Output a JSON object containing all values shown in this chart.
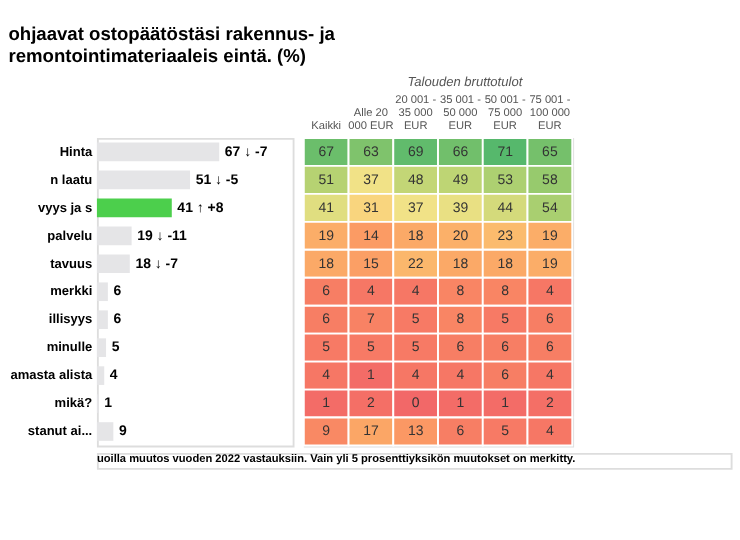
{
  "chart_data": [
    {
      "type": "bar",
      "orientation": "horizontal",
      "title": "ohjaavat ostopäätöstäsi rakennus- ja remontointimateriaaleis eintä. (%)",
      "categories": [
        "Hinta",
        "n laatu",
        "vyys ja s",
        "palvelu",
        "tavuus",
        "merkki",
        "illisyys",
        "minulle",
        "amasta alista",
        "mikä?",
        "stanut ai..."
      ],
      "values": [
        67,
        51,
        41,
        19,
        18,
        6,
        6,
        5,
        4,
        1,
        9
      ],
      "colors": [
        "#e5e5e7",
        "#e5e5e7",
        "#4ccf4c",
        "#e5e5e7",
        "#e5e5e7",
        "#e5e5e7",
        "#e5e5e7",
        "#e5e5e7",
        "#e5e5e7",
        "#e5e5e7",
        "#e5e5e7"
      ],
      "value_labels": [
        "67 ↓ -7",
        "51 ↓ -5",
        "41 ↑ +8",
        "19 ↓ -11",
        "18 ↓ -7",
        "6",
        "6",
        "5",
        "4",
        "1",
        "9"
      ],
      "annotations": [
        "uoilla muutos vuoden 2022 vastauksiin. Vain yli 5 prosenttiyksikön muutokset on merkitty."
      ]
    },
    {
      "type": "heatmap",
      "xlabel": "Talouden bruttotulot",
      "categories": [
        "Kaikki",
        "Alle 20 000 EUR",
        "20 001 - 35 000 EUR",
        "35 001 - 50 000 EUR",
        "50 001 - 75 000 EUR",
        "75 001 - 100 000 EUR"
      ],
      "y_categories": [
        null,
        null,
        null,
        null,
        null,
        null,
        null,
        null,
        null,
        null,
        null
      ],
      "cells": [
        [
          67,
          63,
          69,
          66,
          71,
          65
        ],
        [
          51,
          37,
          48,
          49,
          53,
          58
        ],
        [
          41,
          31,
          37,
          39,
          44,
          54
        ],
        [
          19,
          14,
          18,
          20,
          23,
          19
        ],
        [
          18,
          15,
          22,
          18,
          18,
          19
        ],
        [
          6,
          4,
          4,
          8,
          8,
          4
        ],
        [
          6,
          7,
          5,
          8,
          5,
          6
        ],
        [
          5,
          5,
          5,
          6,
          6,
          6
        ],
        [
          4,
          1,
          4,
          4,
          6,
          4
        ],
        [
          1,
          2,
          0,
          1,
          1,
          2
        ],
        [
          9,
          17,
          13,
          6,
          5,
          4
        ]
      ],
      "data_labels": true
    }
  ]
}
